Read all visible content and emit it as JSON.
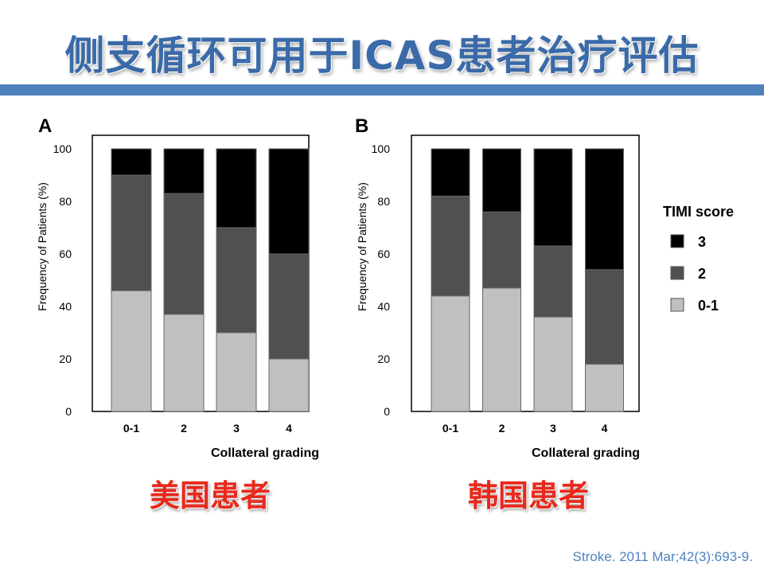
{
  "title": "侧支循环可用于ICAS患者治疗评估",
  "chart_data": [
    {
      "type": "bar",
      "stacked": true,
      "panel_label": "A",
      "caption": "美国患者",
      "xlabel": "Collateral grading",
      "ylabel": "Frequency of Patients (%)",
      "ylim": [
        0,
        100
      ],
      "yticks": [
        0,
        20,
        40,
        60,
        80,
        100
      ],
      "categories": [
        "0-1",
        "2",
        "3",
        "4"
      ],
      "series": [
        {
          "name": "0-1",
          "color": "#c0c0c0",
          "values": [
            46,
            37,
            30,
            20
          ]
        },
        {
          "name": "2",
          "color": "#505050",
          "values": [
            44,
            46,
            40,
            40
          ]
        },
        {
          "name": "3",
          "color": "#000000",
          "values": [
            10,
            17,
            30,
            40
          ]
        }
      ],
      "grid": false
    },
    {
      "type": "bar",
      "stacked": true,
      "panel_label": "B",
      "caption": "韩国患者",
      "xlabel": "Collateral grading",
      "ylabel": "Frequency of Patients (%)",
      "ylim": [
        0,
        100
      ],
      "yticks": [
        0,
        20,
        40,
        60,
        80,
        100
      ],
      "categories": [
        "0-1",
        "2",
        "3",
        "4"
      ],
      "series": [
        {
          "name": "0-1",
          "color": "#c0c0c0",
          "values": [
            44,
            47,
            36,
            18
          ]
        },
        {
          "name": "2",
          "color": "#505050",
          "values": [
            38,
            29,
            27,
            36
          ]
        },
        {
          "name": "3",
          "color": "#000000",
          "values": [
            18,
            24,
            37,
            46
          ]
        }
      ],
      "grid": false
    }
  ],
  "legend": {
    "title": "TIMI score",
    "items": [
      {
        "label": "3",
        "color": "#000000"
      },
      {
        "label": "2",
        "color": "#505050"
      },
      {
        "label": "0-1",
        "color": "#c0c0c0"
      }
    ]
  },
  "citation": "Stroke. 2011 Mar;42(3):693-9."
}
